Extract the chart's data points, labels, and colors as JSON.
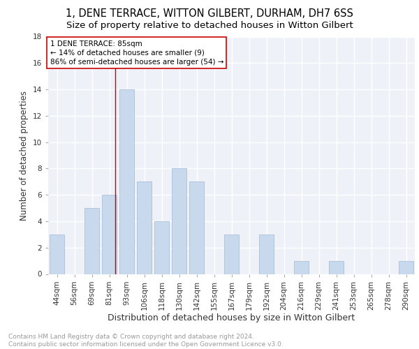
{
  "title": "1, DENE TERRACE, WITTON GILBERT, DURHAM, DH7 6SS",
  "subtitle": "Size of property relative to detached houses in Witton Gilbert",
  "xlabel": "Distribution of detached houses by size in Witton Gilbert",
  "ylabel": "Number of detached properties",
  "categories": [
    "44sqm",
    "56sqm",
    "69sqm",
    "81sqm",
    "93sqm",
    "106sqm",
    "118sqm",
    "130sqm",
    "142sqm",
    "155sqm",
    "167sqm",
    "179sqm",
    "192sqm",
    "204sqm",
    "216sqm",
    "229sqm",
    "241sqm",
    "253sqm",
    "265sqm",
    "278sqm",
    "290sqm"
  ],
  "values": [
    3,
    0,
    5,
    6,
    14,
    7,
    4,
    8,
    7,
    0,
    3,
    0,
    3,
    0,
    1,
    0,
    1,
    0,
    0,
    0,
    1
  ],
  "bar_color": "#c9d9ed",
  "bar_edgecolor": "#a0b8d8",
  "property_line_color": "#cc0000",
  "annotation_text": "1 DENE TERRACE: 85sqm\n← 14% of detached houses are smaller (9)\n86% of semi-detached houses are larger (54) →",
  "annotation_box_color": "#cc0000",
  "ylim": [
    0,
    18
  ],
  "yticks": [
    0,
    2,
    4,
    6,
    8,
    10,
    12,
    14,
    16,
    18
  ],
  "background_color": "#eef2f8",
  "grid_color": "#ffffff",
  "footer_text": "Contains HM Land Registry data © Crown copyright and database right 2024.\nContains public sector information licensed under the Open Government Licence v3.0.",
  "title_fontsize": 10.5,
  "subtitle_fontsize": 9.5,
  "xlabel_fontsize": 9,
  "ylabel_fontsize": 8.5,
  "tick_fontsize": 7.5,
  "annotation_fontsize": 7.5,
  "footer_fontsize": 6.5
}
